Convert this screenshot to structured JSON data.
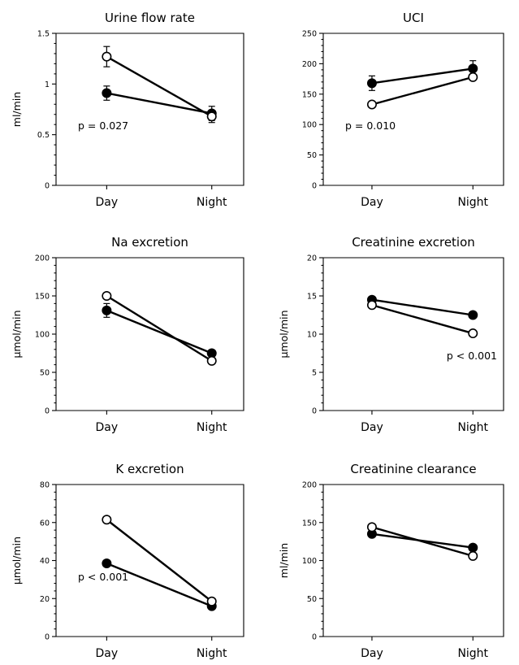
{
  "chart_data": [
    {
      "type": "line",
      "title": "Urine flow rate",
      "ylabel": "ml/min",
      "categories": [
        "Day",
        "Night"
      ],
      "ylim": [
        0,
        1.5
      ],
      "yticks": [
        0,
        0.5,
        1,
        1.5
      ],
      "ytick_labels": [
        "0",
        "0.5",
        "1",
        "1.5"
      ],
      "minor_ticks_per_major": 4,
      "annotation": "p = 0.027",
      "annotation_pos": "left",
      "series": [
        {
          "marker": "open",
          "values": [
            1.27,
            0.68
          ],
          "errors": [
            0.1,
            0.06
          ]
        },
        {
          "marker": "filled",
          "values": [
            0.91,
            0.71
          ],
          "errors": [
            0.07,
            0.07
          ]
        }
      ]
    },
    {
      "type": "line",
      "title": "UCI",
      "ylabel": "",
      "categories": [
        "Day",
        "Night"
      ],
      "ylim": [
        0,
        250
      ],
      "yticks": [
        0,
        50,
        100,
        150,
        200,
        250
      ],
      "ytick_labels": [
        "0",
        "50",
        "100",
        "150",
        "200",
        "250"
      ],
      "minor_ticks_per_major": 4,
      "annotation": "p = 0.010",
      "annotation_pos": "left",
      "series": [
        {
          "marker": "filled",
          "values": [
            168,
            192
          ],
          "errors": [
            12,
            13
          ]
        },
        {
          "marker": "open",
          "values": [
            133,
            178
          ],
          "errors": [
            4,
            5
          ]
        }
      ]
    },
    {
      "type": "line",
      "title": "Na excretion",
      "ylabel": "μmol/min",
      "categories": [
        "Day",
        "Night"
      ],
      "ylim": [
        0,
        200
      ],
      "yticks": [
        0,
        50,
        100,
        150,
        200
      ],
      "ytick_labels": [
        "0",
        "50",
        "100",
        "150",
        "200"
      ],
      "minor_ticks_per_major": 4,
      "annotation": "",
      "annotation_pos": "left",
      "series": [
        {
          "marker": "open",
          "values": [
            150,
            65
          ],
          "errors": [
            3,
            3
          ]
        },
        {
          "marker": "filled",
          "values": [
            131,
            75
          ],
          "errors": [
            9,
            4
          ]
        }
      ]
    },
    {
      "type": "line",
      "title": "Creatinine excretion",
      "ylabel": "μmol/min",
      "categories": [
        "Day",
        "Night"
      ],
      "ylim": [
        0,
        20
      ],
      "yticks": [
        0,
        5,
        10,
        15,
        20
      ],
      "ytick_labels": [
        "0",
        "5",
        "10",
        "15",
        "20"
      ],
      "minor_ticks_per_major": 4,
      "annotation": "p < 0.001",
      "annotation_pos": "right",
      "series": [
        {
          "marker": "filled",
          "values": [
            14.5,
            12.5
          ],
          "errors": [
            0.4,
            0.4
          ]
        },
        {
          "marker": "open",
          "values": [
            13.8,
            10.1
          ],
          "errors": [
            0.4,
            0.3
          ]
        }
      ]
    },
    {
      "type": "line",
      "title": "K excretion",
      "ylabel": "μmol/min",
      "categories": [
        "Day",
        "Night"
      ],
      "ylim": [
        0,
        80
      ],
      "yticks": [
        0,
        20,
        40,
        60,
        80
      ],
      "ytick_labels": [
        "0",
        "20",
        "40",
        "60",
        "80"
      ],
      "minor_ticks_per_major": 4,
      "annotation": "p < 0.001",
      "annotation_pos": "left",
      "series": [
        {
          "marker": "open",
          "values": [
            61.5,
            18.5
          ],
          "errors": [
            1.5,
            1
          ]
        },
        {
          "marker": "filled",
          "values": [
            38.5,
            16
          ],
          "errors": [
            1.5,
            1
          ]
        }
      ]
    },
    {
      "type": "line",
      "title": "Creatinine clearance",
      "ylabel": "ml/min",
      "categories": [
        "Day",
        "Night"
      ],
      "ylim": [
        0,
        200
      ],
      "yticks": [
        0,
        50,
        100,
        150,
        200
      ],
      "ytick_labels": [
        "0",
        "50",
        "100",
        "150",
        "200"
      ],
      "minor_ticks_per_major": 4,
      "annotation": "",
      "annotation_pos": "left",
      "series": [
        {
          "marker": "filled",
          "values": [
            135,
            117
          ],
          "errors": [
            4,
            4
          ]
        },
        {
          "marker": "open",
          "values": [
            144,
            106
          ],
          "errors": [
            4,
            4
          ]
        }
      ]
    }
  ]
}
